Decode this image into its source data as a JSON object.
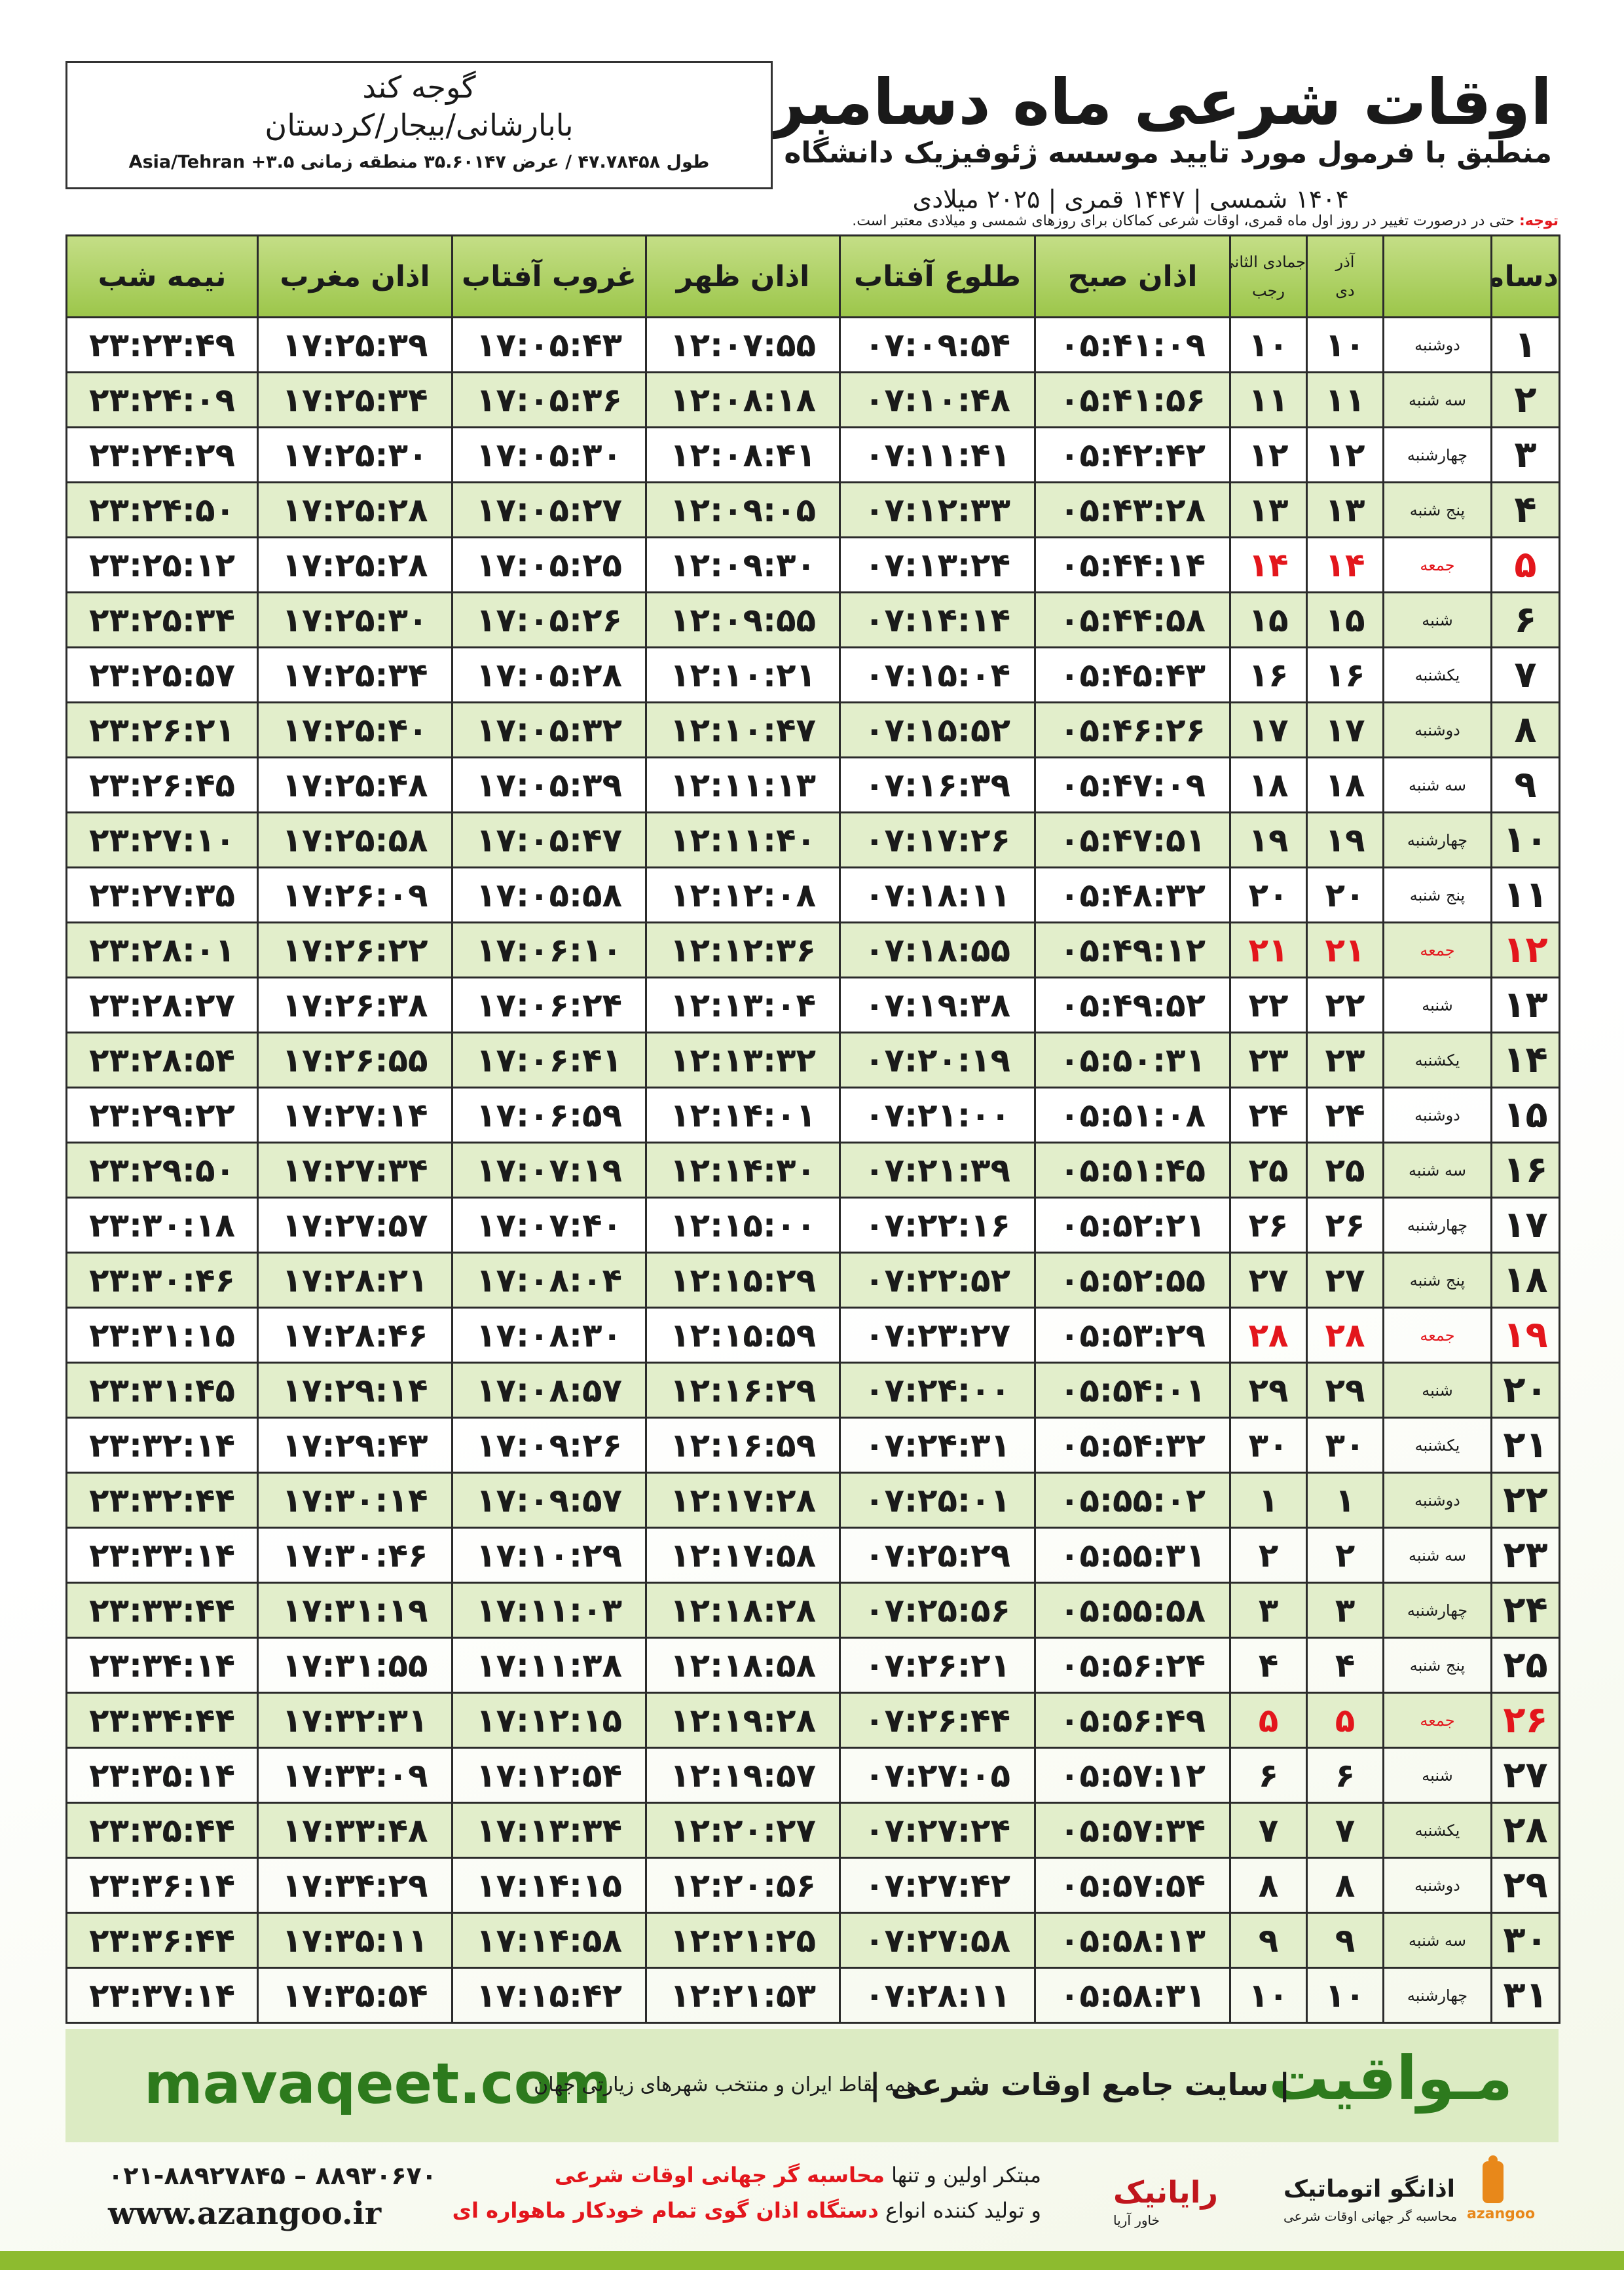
{
  "header": {
    "title": "اوقات شرعی ماه دسامبر",
    "subtitle": "منطبق با فرمول مورد تایید موسسه ژئوفیزیک دانشگاه تهران",
    "date_line": "۱۴۰۴ شمسی | ۱۴۴۷ قمری | ۲۰۲۵ میلادی"
  },
  "location": {
    "city": "گوجه کند",
    "region": "بابارشانی/بیجار/کردستان",
    "coords": "طول ۴۷.۷۸۴۵۸ / عرض ۳۵.۶۰۱۴۷ منطقه زمانی ۳.۵+ Asia/Tehran"
  },
  "note": {
    "label": "توجه:",
    "text": "حتی در درصورت تغییر در روز اول ماه قمری، اوقات شرعی کماکان برای روزهای شمسی و میلادی معتبر است."
  },
  "table": {
    "header": {
      "month": "دسامبر",
      "shamsi_top": "آذر",
      "shamsi_bottom": "دی",
      "hijri_top": "جمادی الثانی",
      "hijri_bottom": "رجب",
      "columns": [
        "اذان صبح",
        "طلوع آفتاب",
        "اذان ظهر",
        "غروب آفتاب",
        "اذان مغرب",
        "نیمه شب"
      ]
    },
    "rows": [
      {
        "cells": [
          "۱",
          "دوشنبه",
          "۱۰",
          "۱۰",
          "۰۵:۴۱:۰۹",
          "۰۷:۰۹:۵۴",
          "۱۲:۰۷:۵۵",
          "۱۷:۰۵:۴۳",
          "۱۷:۲۵:۳۹",
          "۲۳:۲۳:۴۹"
        ]
      },
      {
        "cells": [
          "۲",
          "سه شنبه",
          "۱۱",
          "۱۱",
          "۰۵:۴۱:۵۶",
          "۰۷:۱۰:۴۸",
          "۱۲:۰۸:۱۸",
          "۱۷:۰۵:۳۶",
          "۱۷:۲۵:۳۴",
          "۲۳:۲۴:۰۹"
        ]
      },
      {
        "cells": [
          "۳",
          "چهارشنبه",
          "۱۲",
          "۱۲",
          "۰۵:۴۲:۴۲",
          "۰۷:۱۱:۴۱",
          "۱۲:۰۸:۴۱",
          "۱۷:۰۵:۳۰",
          "۱۷:۲۵:۳۰",
          "۲۳:۲۴:۲۹"
        ]
      },
      {
        "cells": [
          "۴",
          "پنج شنبه",
          "۱۳",
          "۱۳",
          "۰۵:۴۳:۲۸",
          "۰۷:۱۲:۳۳",
          "۱۲:۰۹:۰۵",
          "۱۷:۰۵:۲۷",
          "۱۷:۲۵:۲۸",
          "۲۳:۲۴:۵۰"
        ]
      },
      {
        "cells": [
          "۵",
          "جمعه",
          "۱۴",
          "۱۴",
          "۰۵:۴۴:۱۴",
          "۰۷:۱۳:۲۴",
          "۱۲:۰۹:۳۰",
          "۱۷:۰۵:۲۵",
          "۱۷:۲۵:۲۸",
          "۲۳:۲۵:۱۲"
        ],
        "red": true
      },
      {
        "cells": [
          "۶",
          "شنبه",
          "۱۵",
          "۱۵",
          "۰۵:۴۴:۵۸",
          "۰۷:۱۴:۱۴",
          "۱۲:۰۹:۵۵",
          "۱۷:۰۵:۲۶",
          "۱۷:۲۵:۳۰",
          "۲۳:۲۵:۳۴"
        ]
      },
      {
        "cells": [
          "۷",
          "یکشنبه",
          "۱۶",
          "۱۶",
          "۰۵:۴۵:۴۳",
          "۰۷:۱۵:۰۴",
          "۱۲:۱۰:۲۱",
          "۱۷:۰۵:۲۸",
          "۱۷:۲۵:۳۴",
          "۲۳:۲۵:۵۷"
        ]
      },
      {
        "cells": [
          "۸",
          "دوشنبه",
          "۱۷",
          "۱۷",
          "۰۵:۴۶:۲۶",
          "۰۷:۱۵:۵۲",
          "۱۲:۱۰:۴۷",
          "۱۷:۰۵:۳۲",
          "۱۷:۲۵:۴۰",
          "۲۳:۲۶:۲۱"
        ]
      },
      {
        "cells": [
          "۹",
          "سه شنبه",
          "۱۸",
          "۱۸",
          "۰۵:۴۷:۰۹",
          "۰۷:۱۶:۳۹",
          "۱۲:۱۱:۱۳",
          "۱۷:۰۵:۳۹",
          "۱۷:۲۵:۴۸",
          "۲۳:۲۶:۴۵"
        ]
      },
      {
        "cells": [
          "۱۰",
          "چهارشنبه",
          "۱۹",
          "۱۹",
          "۰۵:۴۷:۵۱",
          "۰۷:۱۷:۲۶",
          "۱۲:۱۱:۴۰",
          "۱۷:۰۵:۴۷",
          "۱۷:۲۵:۵۸",
          "۲۳:۲۷:۱۰"
        ]
      },
      {
        "cells": [
          "۱۱",
          "پنج شنبه",
          "۲۰",
          "۲۰",
          "۰۵:۴۸:۳۲",
          "۰۷:۱۸:۱۱",
          "۱۲:۱۲:۰۸",
          "۱۷:۰۵:۵۸",
          "۱۷:۲۶:۰۹",
          "۲۳:۲۷:۳۵"
        ]
      },
      {
        "cells": [
          "۱۲",
          "جمعه",
          "۲۱",
          "۲۱",
          "۰۵:۴۹:۱۲",
          "۰۷:۱۸:۵۵",
          "۱۲:۱۲:۳۶",
          "۱۷:۰۶:۱۰",
          "۱۷:۲۶:۲۲",
          "۲۳:۲۸:۰۱"
        ],
        "red": true
      },
      {
        "cells": [
          "۱۳",
          "شنبه",
          "۲۲",
          "۲۲",
          "۰۵:۴۹:۵۲",
          "۰۷:۱۹:۳۸",
          "۱۲:۱۳:۰۴",
          "۱۷:۰۶:۲۴",
          "۱۷:۲۶:۳۸",
          "۲۳:۲۸:۲۷"
        ]
      },
      {
        "cells": [
          "۱۴",
          "یکشنبه",
          "۲۳",
          "۲۳",
          "۰۵:۵۰:۳۱",
          "۰۷:۲۰:۱۹",
          "۱۲:۱۳:۳۲",
          "۱۷:۰۶:۴۱",
          "۱۷:۲۶:۵۵",
          "۲۳:۲۸:۵۴"
        ]
      },
      {
        "cells": [
          "۱۵",
          "دوشنبه",
          "۲۴",
          "۲۴",
          "۰۵:۵۱:۰۸",
          "۰۷:۲۱:۰۰",
          "۱۲:۱۴:۰۱",
          "۱۷:۰۶:۵۹",
          "۱۷:۲۷:۱۴",
          "۲۳:۲۹:۲۲"
        ]
      },
      {
        "cells": [
          "۱۶",
          "سه شنبه",
          "۲۵",
          "۲۵",
          "۰۵:۵۱:۴۵",
          "۰۷:۲۱:۳۹",
          "۱۲:۱۴:۳۰",
          "۱۷:۰۷:۱۹",
          "۱۷:۲۷:۳۴",
          "۲۳:۲۹:۵۰"
        ]
      },
      {
        "cells": [
          "۱۷",
          "چهارشنبه",
          "۲۶",
          "۲۶",
          "۰۵:۵۲:۲۱",
          "۰۷:۲۲:۱۶",
          "۱۲:۱۵:۰۰",
          "۱۷:۰۷:۴۰",
          "۱۷:۲۷:۵۷",
          "۲۳:۳۰:۱۸"
        ]
      },
      {
        "cells": [
          "۱۸",
          "پنج شنبه",
          "۲۷",
          "۲۷",
          "۰۵:۵۲:۵۵",
          "۰۷:۲۲:۵۲",
          "۱۲:۱۵:۲۹",
          "۱۷:۰۸:۰۴",
          "۱۷:۲۸:۲۱",
          "۲۳:۳۰:۴۶"
        ]
      },
      {
        "cells": [
          "۱۹",
          "جمعه",
          "۲۸",
          "۲۸",
          "۰۵:۵۳:۲۹",
          "۰۷:۲۳:۲۷",
          "۱۲:۱۵:۵۹",
          "۱۷:۰۸:۳۰",
          "۱۷:۲۸:۴۶",
          "۲۳:۳۱:۱۵"
        ],
        "red": true
      },
      {
        "cells": [
          "۲۰",
          "شنبه",
          "۲۹",
          "۲۹",
          "۰۵:۵۴:۰۱",
          "۰۷:۲۴:۰۰",
          "۱۲:۱۶:۲۹",
          "۱۷:۰۸:۵۷",
          "۱۷:۲۹:۱۴",
          "۲۳:۳۱:۴۵"
        ]
      },
      {
        "cells": [
          "۲۱",
          "یکشنبه",
          "۳۰",
          "۳۰",
          "۰۵:۵۴:۳۲",
          "۰۷:۲۴:۳۱",
          "۱۲:۱۶:۵۹",
          "۱۷:۰۹:۲۶",
          "۱۷:۲۹:۴۳",
          "۲۳:۳۲:۱۴"
        ]
      },
      {
        "cells": [
          "۲۲",
          "دوشنبه",
          "۱",
          "۱",
          "۰۵:۵۵:۰۲",
          "۰۷:۲۵:۰۱",
          "۱۲:۱۷:۲۸",
          "۱۷:۰۹:۵۷",
          "۱۷:۳۰:۱۴",
          "۲۳:۳۲:۴۴"
        ]
      },
      {
        "cells": [
          "۲۳",
          "سه شنبه",
          "۲",
          "۲",
          "۰۵:۵۵:۳۱",
          "۰۷:۲۵:۲۹",
          "۱۲:۱۷:۵۸",
          "۱۷:۱۰:۲۹",
          "۱۷:۳۰:۴۶",
          "۲۳:۳۳:۱۴"
        ]
      },
      {
        "cells": [
          "۲۴",
          "چهارشنبه",
          "۳",
          "۳",
          "۰۵:۵۵:۵۸",
          "۰۷:۲۵:۵۶",
          "۱۲:۱۸:۲۸",
          "۱۷:۱۱:۰۳",
          "۱۷:۳۱:۱۹",
          "۲۳:۳۳:۴۴"
        ]
      },
      {
        "cells": [
          "۲۵",
          "پنج شنبه",
          "۴",
          "۴",
          "۰۵:۵۶:۲۴",
          "۰۷:۲۶:۲۱",
          "۱۲:۱۸:۵۸",
          "۱۷:۱۱:۳۸",
          "۱۷:۳۱:۵۵",
          "۲۳:۳۴:۱۴"
        ]
      },
      {
        "cells": [
          "۲۶",
          "جمعه",
          "۵",
          "۵",
          "۰۵:۵۶:۴۹",
          "۰۷:۲۶:۴۴",
          "۱۲:۱۹:۲۸",
          "۱۷:۱۲:۱۵",
          "۱۷:۳۲:۳۱",
          "۲۳:۳۴:۴۴"
        ],
        "red": true
      },
      {
        "cells": [
          "۲۷",
          "شنبه",
          "۶",
          "۶",
          "۰۵:۵۷:۱۲",
          "۰۷:۲۷:۰۵",
          "۱۲:۱۹:۵۷",
          "۱۷:۱۲:۵۴",
          "۱۷:۳۳:۰۹",
          "۲۳:۳۵:۱۴"
        ]
      },
      {
        "cells": [
          "۲۸",
          "یکشنبه",
          "۷",
          "۷",
          "۰۵:۵۷:۳۴",
          "۰۷:۲۷:۲۴",
          "۱۲:۲۰:۲۷",
          "۱۷:۱۳:۳۴",
          "۱۷:۳۳:۴۸",
          "۲۳:۳۵:۴۴"
        ]
      },
      {
        "cells": [
          "۲۹",
          "دوشنبه",
          "۸",
          "۸",
          "۰۵:۵۷:۵۴",
          "۰۷:۲۷:۴۲",
          "۱۲:۲۰:۵۶",
          "۱۷:۱۴:۱۵",
          "۱۷:۳۴:۲۹",
          "۲۳:۳۶:۱۴"
        ]
      },
      {
        "cells": [
          "۳۰",
          "سه شنبه",
          "۹",
          "۹",
          "۰۵:۵۸:۱۳",
          "۰۷:۲۷:۵۸",
          "۱۲:۲۱:۲۵",
          "۱۷:۱۴:۵۸",
          "۱۷:۳۵:۱۱",
          "۲۳:۳۶:۴۴"
        ]
      },
      {
        "cells": [
          "۳۱",
          "چهارشنبه",
          "۱۰",
          "۱۰",
          "۰۵:۵۸:۳۱",
          "۰۷:۲۸:۱۱",
          "۱۲:۲۱:۵۳",
          "۱۷:۱۵:۴۲",
          "۱۷:۳۵:۵۴",
          "۲۳:۳۷:۱۴"
        ]
      }
    ]
  },
  "banner": {
    "site": "mavaqeet.com",
    "logo": "مـواقیت",
    "tagline": "| سایت جامع اوقات شرعی |",
    "tagline2": "همه نقاط ایران و منتخب شهرهای زیارتی جهان"
  },
  "footer": {
    "phone": "۰۲۱-۸۸۹۲۷۸۴۵ – ۸۸۹۳۰۶۷۰",
    "web": "www.azangoo.ir",
    "line1_a": "مبتکر اولین و تنها",
    "line1_b": "محاسبه گر جهانی اوقات شرعی",
    "line2_a": "و تولید کننده انواع",
    "line2_b": "دستگاه اذان گوی تمام خودکار ماهواره ای",
    "brand1": "رایانیک",
    "brand2": "خاور آریا",
    "brand3": "اذانگو اتوماتیک",
    "brand3_sub": "محاسبه گر جهانی اوقات شرعی",
    "brand4": "azangoo"
  }
}
